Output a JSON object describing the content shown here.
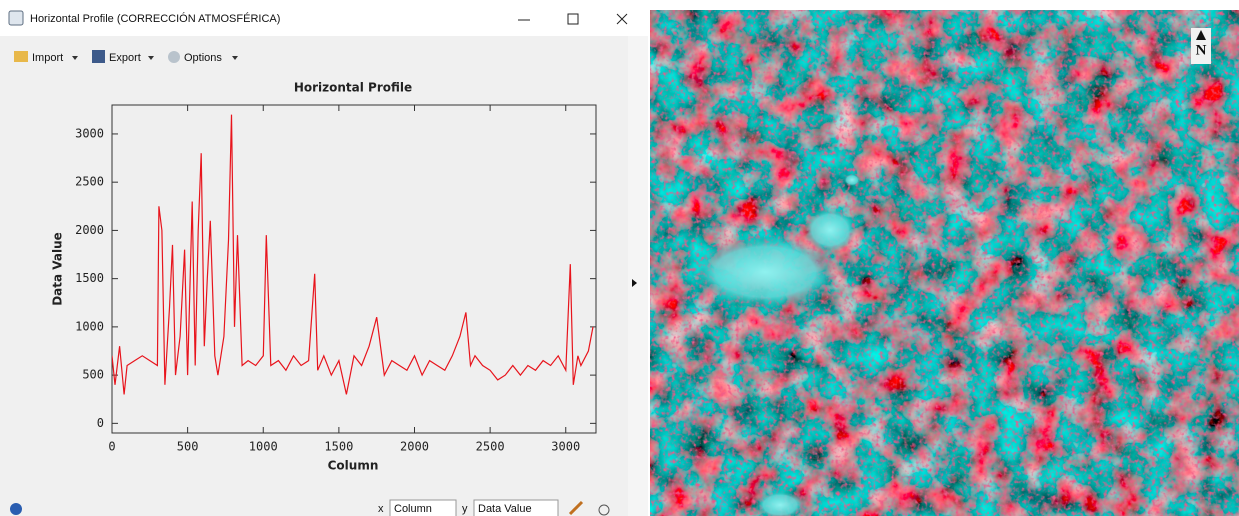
{
  "window": {
    "title": "Horizontal Profile (CORRECCIÓN ATMOSFÉRICA)"
  },
  "toolbar": {
    "import": "Import",
    "export": "Export",
    "options": "Options"
  },
  "chart_data": {
    "type": "line",
    "title": "Horizontal Profile",
    "x_label": "Column",
    "y_label": "Data Value",
    "color": "#e8141c",
    "x": [
      0,
      20,
      50,
      80,
      100,
      150,
      200,
      250,
      300,
      310,
      330,
      350,
      380,
      400,
      420,
      450,
      480,
      500,
      530,
      550,
      570,
      590,
      610,
      630,
      650,
      680,
      700,
      740,
      770,
      790,
      810,
      830,
      860,
      900,
      950,
      1000,
      1020,
      1050,
      1100,
      1150,
      1200,
      1250,
      1300,
      1340,
      1360,
      1400,
      1450,
      1500,
      1550,
      1600,
      1650,
      1700,
      1750,
      1800,
      1850,
      1900,
      1950,
      2000,
      2050,
      2100,
      2150,
      2200,
      2250,
      2300,
      2340,
      2370,
      2400,
      2450,
      2500,
      2550,
      2600,
      2650,
      2700,
      2750,
      2800,
      2850,
      2900,
      2950,
      3000,
      3030,
      3050,
      3080,
      3100,
      3150,
      3180
    ],
    "values": [
      700,
      400,
      800,
      300,
      600,
      650,
      700,
      650,
      600,
      2250,
      2000,
      400,
      1200,
      1850,
      500,
      900,
      1800,
      500,
      2300,
      600,
      2000,
      2800,
      800,
      1500,
      2100,
      700,
      500,
      900,
      1900,
      3200,
      1000,
      1950,
      600,
      650,
      600,
      700,
      1950,
      600,
      650,
      550,
      700,
      600,
      650,
      1550,
      550,
      700,
      500,
      650,
      300,
      700,
      600,
      800,
      1100,
      500,
      650,
      600,
      550,
      700,
      500,
      650,
      600,
      550,
      700,
      900,
      1150,
      600,
      700,
      600,
      550,
      450,
      500,
      600,
      500,
      600,
      550,
      650,
      600,
      700,
      550,
      1650,
      400,
      700,
      600,
      750,
      1000
    ],
    "xlim": [
      0,
      3200
    ],
    "xticks": [
      0,
      500,
      1000,
      1500,
      2000,
      2500,
      3000
    ],
    "ylim": [
      -100,
      3300
    ],
    "yticks": [
      0,
      500,
      1000,
      1500,
      2000,
      2500,
      3000
    ]
  },
  "footer": {
    "x_label": "x",
    "x_select": "Column",
    "y_label": "y",
    "y_select": "Data Value"
  },
  "image": {
    "north_label": "N"
  }
}
